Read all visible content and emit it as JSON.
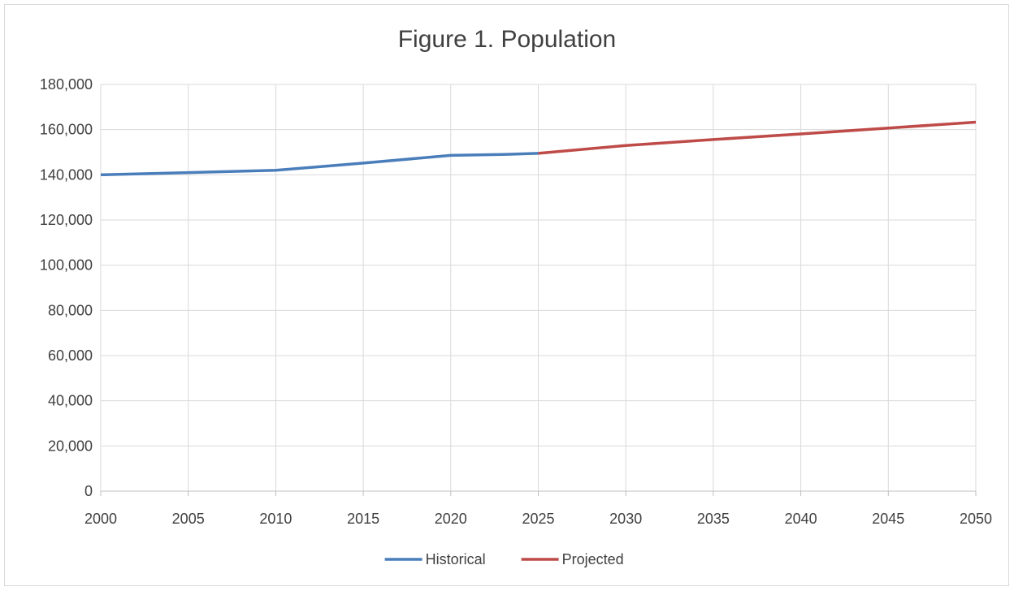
{
  "chart_data": {
    "type": "line",
    "title": "Figure 1. Population",
    "xlabel": "",
    "ylabel": "",
    "x": [
      2000,
      2005,
      2010,
      2015,
      2020,
      2023,
      2025,
      2030,
      2035,
      2040,
      2045,
      2050
    ],
    "x_ticks": [
      "2000",
      "2005",
      "2010",
      "2015",
      "2020",
      "2025",
      "2030",
      "2035",
      "2040",
      "2045",
      "2050"
    ],
    "y_ticks": [
      "0",
      "20,000",
      "40,000",
      "60,000",
      "80,000",
      "100,000",
      "120,000",
      "140,000",
      "160,000",
      "180,000"
    ],
    "xlim": [
      2000,
      2050
    ],
    "ylim": [
      0,
      180000
    ],
    "grid": true,
    "legend_position": "bottom",
    "series": [
      {
        "name": "Historical",
        "color": "#4a7ebb",
        "points": [
          [
            2000,
            140000
          ],
          [
            2005,
            141000
          ],
          [
            2010,
            142000
          ],
          [
            2015,
            145200
          ],
          [
            2020,
            148600
          ],
          [
            2023,
            149000
          ],
          [
            2025,
            149500
          ]
        ]
      },
      {
        "name": "Projected",
        "color": "#be4b48",
        "points": [
          [
            2025,
            149500
          ],
          [
            2030,
            153000
          ],
          [
            2035,
            155600
          ],
          [
            2040,
            158100
          ],
          [
            2045,
            160700
          ],
          [
            2050,
            163300
          ]
        ]
      }
    ]
  }
}
